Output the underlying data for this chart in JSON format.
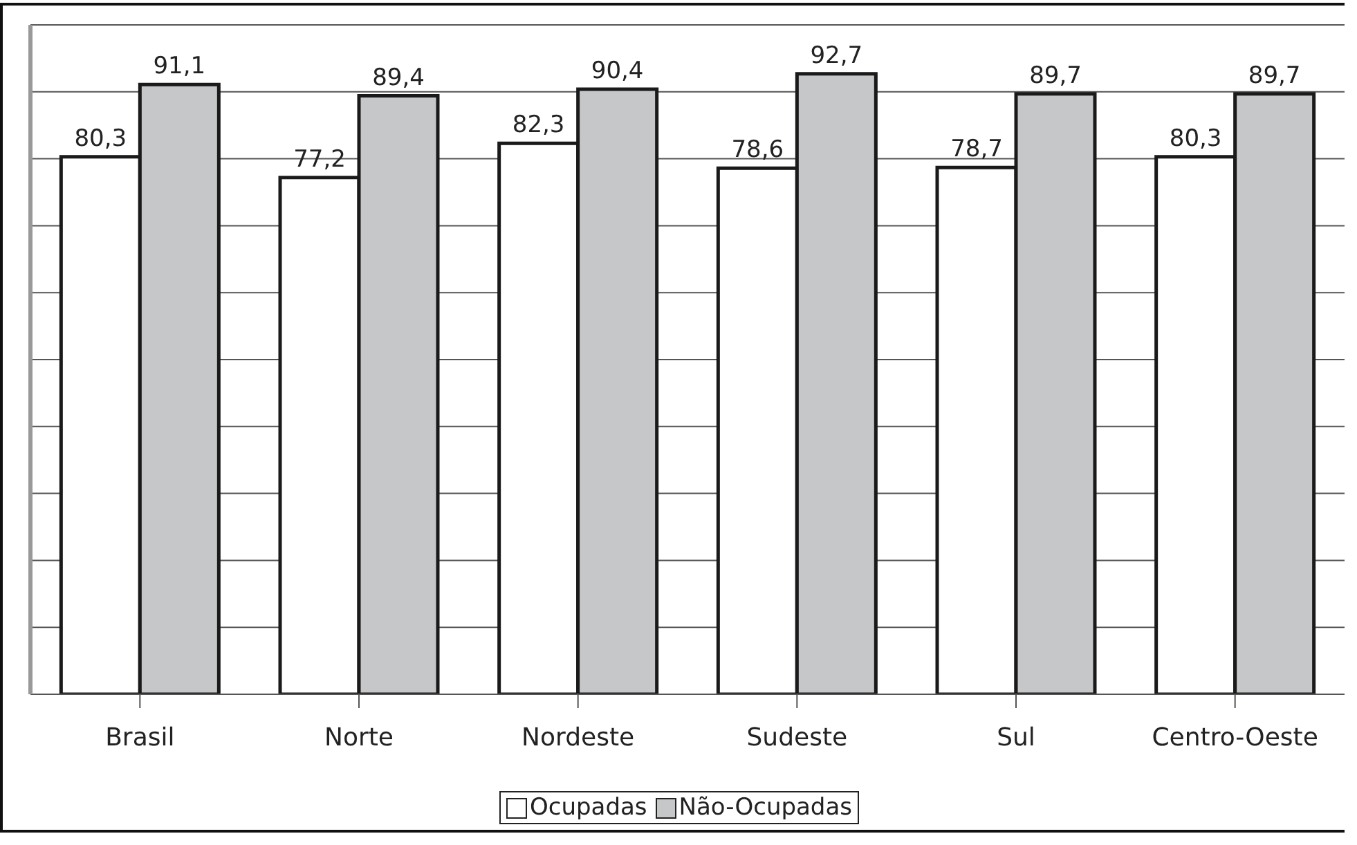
{
  "chart_data": {
    "type": "bar",
    "categories": [
      "Brasil",
      "Norte",
      "Nordeste",
      "Sudeste",
      "Sul",
      "Centro-Oeste"
    ],
    "series": [
      {
        "name": "Ocupadas",
        "color": "#ffffff",
        "values": [
          80.3,
          77.2,
          82.3,
          78.6,
          78.7,
          80.3
        ],
        "value_labels": [
          "80,3",
          "77,2",
          "82,3",
          "78,6",
          "78,7",
          "80,3"
        ]
      },
      {
        "name": "Não-Ocupadas",
        "color": "#c6c7c9",
        "values": [
          91.1,
          89.4,
          90.4,
          92.7,
          89.7,
          89.7
        ],
        "value_labels": [
          "91,1",
          "89,4",
          "90,4",
          "92,7",
          "89,7",
          "89,7"
        ]
      }
    ],
    "ylim": [
      0,
      100
    ],
    "grid": "y",
    "legend": "bottom",
    "tick_labels": "x"
  }
}
